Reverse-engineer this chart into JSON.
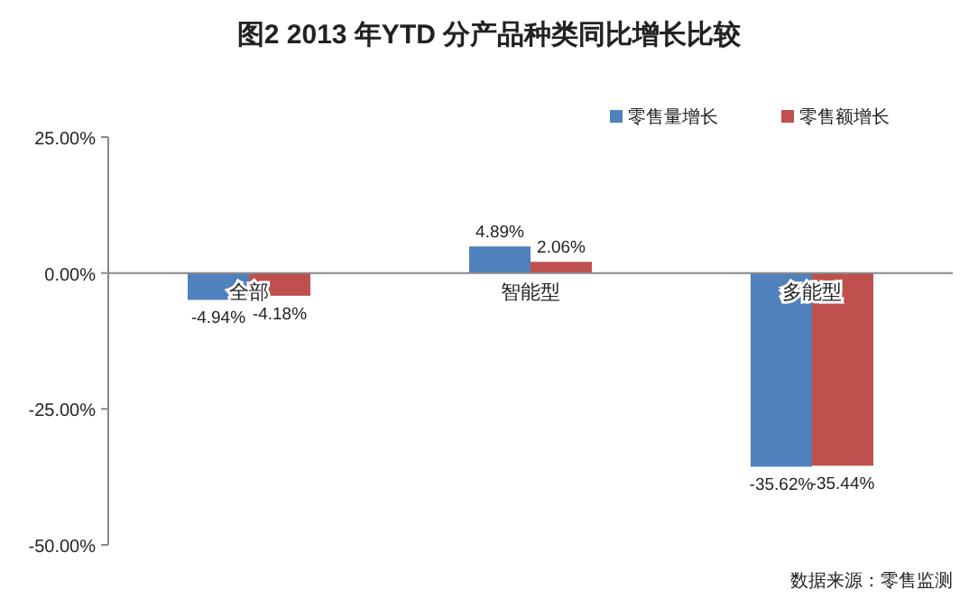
{
  "chart_data": {
    "type": "bar",
    "title": "图2  2013 年YTD 分产品种类同比增长比较",
    "categories": [
      "全部",
      "智能型",
      "多能型"
    ],
    "series": [
      {
        "name": "零售量增长",
        "color": "#4f81bd",
        "values": [
          -4.94,
          4.89,
          -35.62
        ],
        "value_labels": [
          "-4.94%",
          "4.89%",
          "-35.62%"
        ]
      },
      {
        "name": "零售额增长",
        "color": "#c0504d",
        "values": [
          -4.18,
          2.06,
          -35.44
        ],
        "value_labels": [
          "-4.18%",
          "2.06%",
          "-35.44%"
        ]
      }
    ],
    "ylim": [
      -50,
      25
    ],
    "yticks": [
      {
        "value": -50,
        "label": "-50.00%"
      },
      {
        "value": -25,
        "label": "-25.00%"
      },
      {
        "value": 0,
        "label": "0.00%"
      },
      {
        "value": 25,
        "label": "25.00%"
      }
    ],
    "legend": "top right",
    "annotations": [
      "数据来源：零售监测"
    ]
  }
}
